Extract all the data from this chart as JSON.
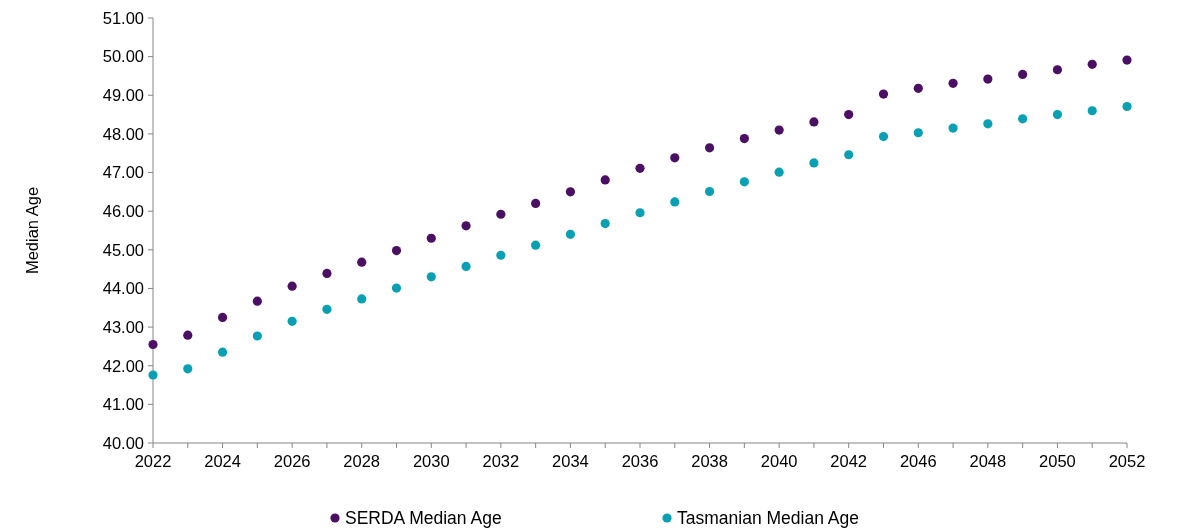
{
  "chart_data": {
    "type": "scatter",
    "ylabel": "Median Age",
    "categories": [
      "2022",
      null,
      "2024",
      null,
      "2026",
      null,
      "2028",
      null,
      "2030",
      null,
      "2032",
      null,
      "2034",
      null,
      "2036",
      null,
      "2038",
      null,
      "2040",
      null,
      "2042",
      null,
      "2046",
      null,
      "2048",
      null,
      "2050",
      null,
      "2052"
    ],
    "series": [
      {
        "name": "SERDA Median Age",
        "color": "#4b0f63",
        "values": [
          42.55,
          42.79,
          43.25,
          43.67,
          44.06,
          44.39,
          44.68,
          44.98,
          45.3,
          45.62,
          45.92,
          46.2,
          46.5,
          46.81,
          47.11,
          47.38,
          47.64,
          47.88,
          48.1,
          48.31,
          48.5,
          49.03,
          49.18,
          49.31,
          49.42,
          49.54,
          49.66,
          49.8,
          49.91
        ]
      },
      {
        "name": "Tasmanian Median Age",
        "color": "#0aa0b4",
        "values": [
          41.76,
          41.92,
          42.35,
          42.77,
          43.15,
          43.46,
          43.73,
          44.01,
          44.3,
          44.57,
          44.86,
          45.12,
          45.4,
          45.68,
          45.96,
          46.24,
          46.51,
          46.76,
          47.01,
          47.25,
          47.46,
          47.93,
          48.03,
          48.15,
          48.26,
          48.39,
          48.5,
          48.6,
          48.71
        ]
      }
    ],
    "ylim": [
      40,
      51
    ],
    "yticks": [
      {
        "value": 40,
        "label": "40.00"
      },
      {
        "value": 41,
        "label": "41.00"
      },
      {
        "value": 42,
        "label": "42.00"
      },
      {
        "value": 43,
        "label": "43.00"
      },
      {
        "value": 44,
        "label": "44.00"
      },
      {
        "value": 45,
        "label": "45.00"
      },
      {
        "value": 46,
        "label": "46.00"
      },
      {
        "value": 47,
        "label": "47.00"
      },
      {
        "value": 48,
        "label": "48.00"
      },
      {
        "value": 49,
        "label": "49.00"
      },
      {
        "value": 50,
        "label": "50.00"
      },
      {
        "value": 51,
        "label": "51.00"
      }
    ],
    "grid": false,
    "legend": "bottom",
    "marker": "circle"
  }
}
